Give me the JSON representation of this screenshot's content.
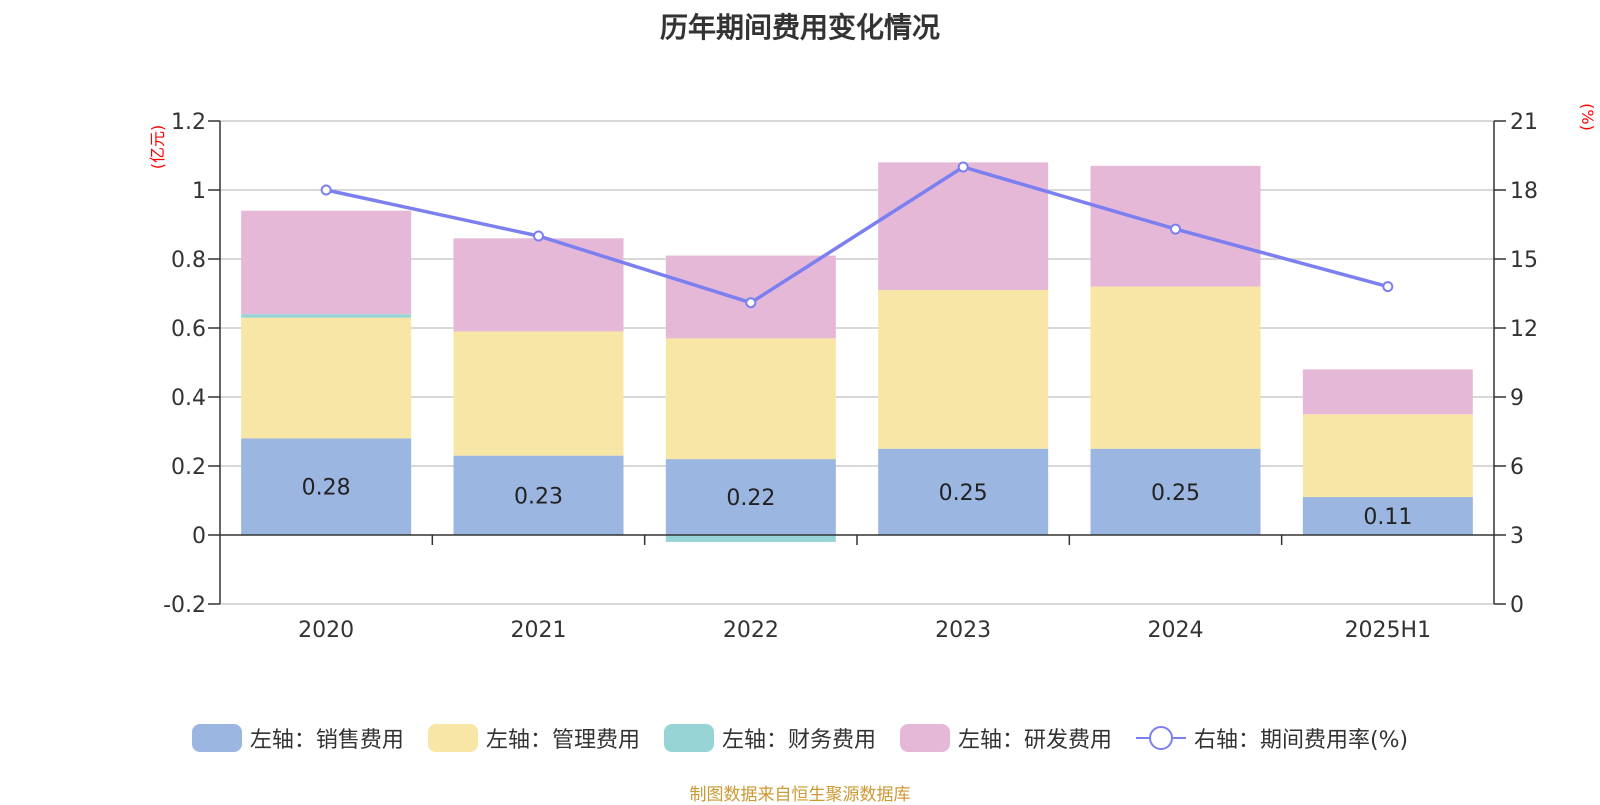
{
  "title": "历年期间费用变化情况",
  "source_note": "制图数据来自恒生聚源数据库",
  "colors": {
    "sales": "#9bb6e0",
    "admin": "#f8e6a6",
    "finance": "#96d4d5",
    "rnd": "#e6b8d8",
    "rate_line": "#7b7ff0",
    "axis_unit": "#ff0000",
    "grid": "#cccccc",
    "text": "#333333"
  },
  "chart_data": {
    "type": "bar",
    "stacked": true,
    "title": "历年期间费用变化情况",
    "categories": [
      "2020",
      "2021",
      "2022",
      "2023",
      "2024",
      "2025H1"
    ],
    "left_axis": {
      "unit_label": "(亿元)",
      "ylim": [
        -0.2,
        1.2
      ],
      "ticks": [
        "-0.2",
        "0",
        "0.2",
        "0.4",
        "0.6",
        "0.8",
        "1",
        "1.2"
      ]
    },
    "right_axis": {
      "unit_label": "(%)",
      "ylim": [
        0,
        21
      ],
      "ticks": [
        "0",
        "3",
        "6",
        "9",
        "12",
        "15",
        "18",
        "21"
      ]
    },
    "grid": true,
    "legend_position": "bottom",
    "series": [
      {
        "name": "左轴：销售费用",
        "axis": "left",
        "color_key": "sales",
        "values": [
          0.28,
          0.23,
          0.22,
          0.25,
          0.25,
          0.11
        ],
        "labels": [
          "0.28",
          "0.23",
          "0.22",
          "0.25",
          "0.25",
          "0.11"
        ]
      },
      {
        "name": "左轴：管理费用",
        "axis": "left",
        "color_key": "admin",
        "values": [
          0.35,
          0.36,
          0.35,
          0.46,
          0.47,
          0.24
        ]
      },
      {
        "name": "左轴：财务费用",
        "axis": "left",
        "color_key": "finance",
        "values": [
          0.01,
          0.0,
          -0.02,
          0.0,
          0.0,
          0.0
        ]
      },
      {
        "name": "左轴：研发费用",
        "axis": "left",
        "color_key": "rnd",
        "values": [
          0.3,
          0.27,
          0.24,
          0.37,
          0.35,
          0.13
        ]
      },
      {
        "name": "右轴：期间费用率(%)",
        "axis": "right",
        "type": "line",
        "color_key": "rate_line",
        "values": [
          18.0,
          16.0,
          13.1,
          19.0,
          16.3,
          13.8
        ]
      }
    ]
  }
}
